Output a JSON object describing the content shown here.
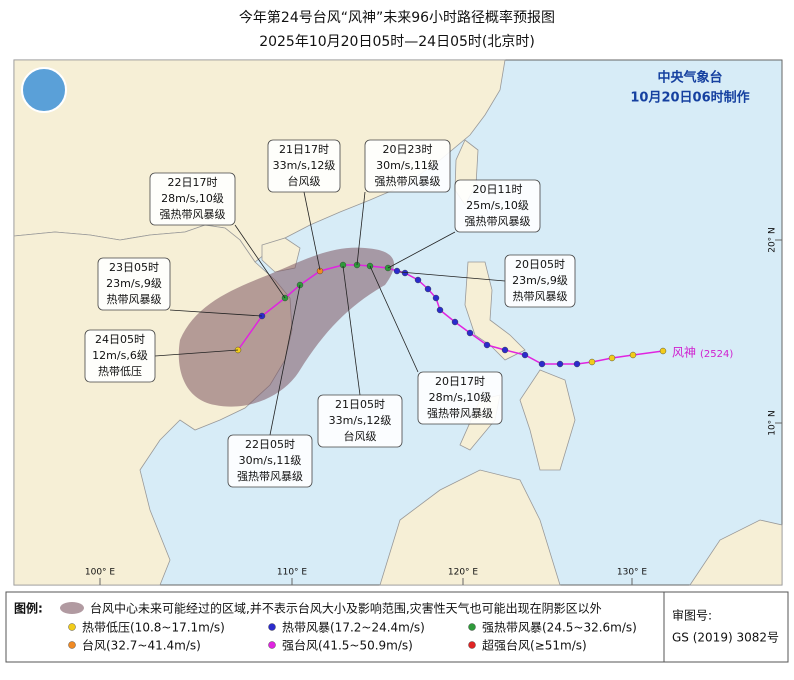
{
  "title": "今年第24号台风“风神”未来96小时路径概率预报图",
  "subtitle": "2025年10月20日05时—24日05时(北京时)",
  "agency": "中央气象台",
  "issued": "10月20日06时制作",
  "typhoon_label": "风神",
  "typhoon_code": "(2524)",
  "axis_labels": {
    "lon": [
      "100° E",
      "110° E",
      "120° E",
      "130° E"
    ],
    "lat": [
      "20° N",
      "10° N"
    ]
  },
  "callouts": [
    {
      "time": "20日05时",
      "wind": "23m/s,9级",
      "level": "热带风暴级"
    },
    {
      "time": "20日11时",
      "wind": "25m/s,10级",
      "level": "强热带风暴级"
    },
    {
      "time": "20日17时",
      "wind": "28m/s,10级",
      "level": "强热带风暴级"
    },
    {
      "time": "20日23时",
      "wind": "30m/s,11级",
      "level": "强热带风暴级"
    },
    {
      "time": "21日05时",
      "wind": "33m/s,12级",
      "level": "台风级"
    },
    {
      "time": "21日17时",
      "wind": "33m/s,12级",
      "level": "台风级"
    },
    {
      "time": "22日05时",
      "wind": "30m/s,11级",
      "level": "强热带风暴级"
    },
    {
      "time": "22日17时",
      "wind": "28m/s,10级",
      "level": "强热带风暴级"
    },
    {
      "time": "23日05时",
      "wind": "23m/s,9级",
      "level": "热带风暴级"
    },
    {
      "time": "24日05时",
      "wind": "12m/s,6级",
      "level": "热带低压"
    }
  ],
  "legend": {
    "heading": "图例:",
    "cone": "台风中心未来可能经过的区域,并不表示台风大小及影响范围,灾害性天气也可能出现在阴影区以外",
    "items": [
      {
        "label": "热带低压(10.8~17.1m/s)",
        "color": "#f2cc1a"
      },
      {
        "label": "热带风暴(17.2~24.4m/s)",
        "color": "#2b2bcc"
      },
      {
        "label": "强热带风暴(24.5~32.6m/s)",
        "color": "#2e9a3a"
      },
      {
        "label": "台风(32.7~41.4m/s)",
        "color": "#f08a24"
      },
      {
        "label": "强台风(41.5~50.9m/s)",
        "color": "#e024e0"
      },
      {
        "label": "超强台风(≥51m/s)",
        "color": "#e02424"
      }
    ],
    "approval_heading": "审图号:",
    "approval": "GS (2019) 3082号"
  }
}
